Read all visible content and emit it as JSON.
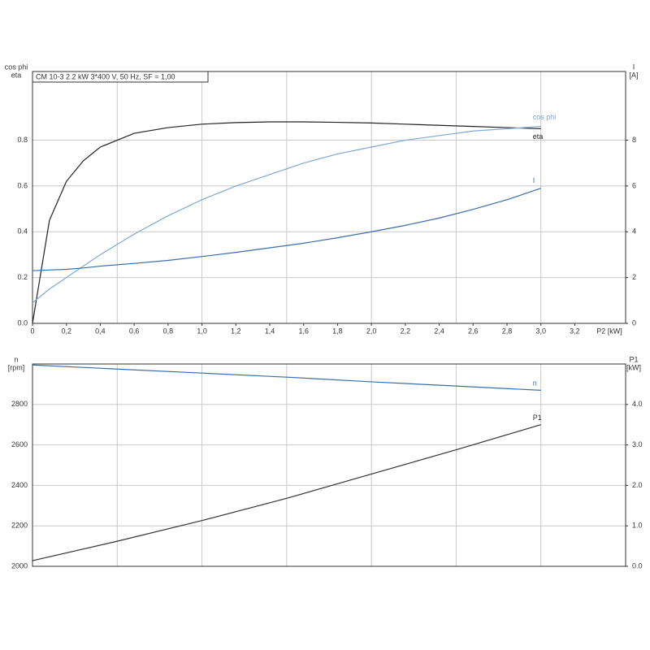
{
  "chart_data": [
    {
      "type": "line",
      "title": "CM 10-3   2.2 kW   3*400 V, 50 Hz, SF = 1,00",
      "xlabel": "P2 [kW]",
      "ylabel": [
        "cos phi",
        "eta"
      ],
      "y2label": [
        "I",
        "[A]"
      ],
      "x": [
        0,
        0.1,
        0.2,
        0.3,
        0.4,
        0.6,
        0.8,
        1.0,
        1.2,
        1.4,
        1.6,
        1.8,
        2.0,
        2.2,
        2.4,
        2.6,
        2.8,
        3.0
      ],
      "xlim": [
        0,
        3.5
      ],
      "xticks": [
        0,
        {
          "value": 0.2,
          "label": "0,2"
        },
        {
          "value": 0.4,
          "label": "0,4"
        },
        {
          "value": 0.6,
          "label": "0,6"
        },
        {
          "value": 0.8,
          "label": "0,8"
        },
        {
          "value": 1.0,
          "label": "1,0"
        },
        {
          "value": 1.2,
          "label": "1,2"
        },
        {
          "value": 1.4,
          "label": "1,4"
        },
        {
          "value": 1.6,
          "label": "1,6"
        },
        {
          "value": 1.8,
          "label": "1,8"
        },
        {
          "value": 2.0,
          "label": "2,0"
        },
        {
          "value": 2.2,
          "label": "2,2"
        },
        {
          "value": 2.4,
          "label": "2,4"
        },
        {
          "value": 2.6,
          "label": "2,6"
        },
        {
          "value": 2.8,
          "label": "2,8"
        },
        {
          "value": 3.0,
          "label": "3,0"
        },
        {
          "value": 3.2,
          "label": "3,2"
        }
      ],
      "xgrid": [
        0.5,
        1.0,
        1.5,
        2.0,
        2.5,
        3.0
      ],
      "ylim": [
        0,
        1.1
      ],
      "yticks": [
        {
          "value": 0,
          "label": "0.0"
        },
        0.2,
        0.4,
        0.6,
        0.8
      ],
      "y2lim": [
        0,
        11
      ],
      "y2ticks": [
        0,
        2,
        4,
        6,
        8
      ],
      "grid": true,
      "series": [
        {
          "name": "eta",
          "color": "#222222",
          "values": [
            0,
            0.45,
            0.62,
            0.71,
            0.77,
            0.83,
            0.855,
            0.87,
            0.877,
            0.88,
            0.88,
            0.878,
            0.875,
            0.87,
            0.865,
            0.86,
            0.855,
            0.85
          ]
        },
        {
          "name": "cos phi",
          "color": "#7ea8d2",
          "values": [
            0.09,
            0.15,
            0.2,
            0.25,
            0.3,
            0.39,
            0.47,
            0.54,
            0.6,
            0.65,
            0.7,
            0.74,
            0.77,
            0.8,
            0.82,
            0.84,
            0.85,
            0.86
          ]
        },
        {
          "name": "I",
          "color": "#3a6ea8",
          "axis": "y2",
          "values": [
            2.3,
            2.33,
            2.36,
            2.42,
            2.5,
            2.62,
            2.75,
            2.92,
            3.1,
            3.3,
            3.5,
            3.74,
            4.0,
            4.28,
            4.6,
            4.98,
            5.4,
            5.9
          ]
        }
      ]
    },
    {
      "type": "line",
      "ylabel": [
        "n",
        "[rpm]"
      ],
      "y2label": [
        "P1",
        "[kW]"
      ],
      "x": [
        0,
        0.5,
        1.0,
        1.5,
        2.0,
        2.5,
        3.0
      ],
      "xlim": [
        0,
        3.5
      ],
      "xgrid": [
        0.5,
        1.0,
        1.5,
        2.0,
        2.5,
        3.0
      ],
      "ylim": [
        2000,
        3000
      ],
      "yticks": [
        2000,
        2200,
        2400,
        2600,
        2800
      ],
      "y2lim": [
        0,
        5
      ],
      "y2ticks": [
        {
          "value": 0,
          "label": "0.0"
        },
        {
          "value": 1,
          "label": "1.0"
        },
        {
          "value": 2,
          "label": "2.0"
        },
        {
          "value": 3,
          "label": "3.0"
        },
        {
          "value": 4,
          "label": "4.0"
        }
      ],
      "grid": true,
      "series": [
        {
          "name": "n",
          "color": "#3a6ea8",
          "values": [
            2995,
            2975,
            2955,
            2935,
            2912,
            2891,
            2870
          ]
        },
        {
          "name": "P1",
          "color": "#333333",
          "axis": "y2",
          "values": [
            0.14,
            0.62,
            1.13,
            1.68,
            2.28,
            2.88,
            3.5
          ]
        }
      ]
    }
  ]
}
